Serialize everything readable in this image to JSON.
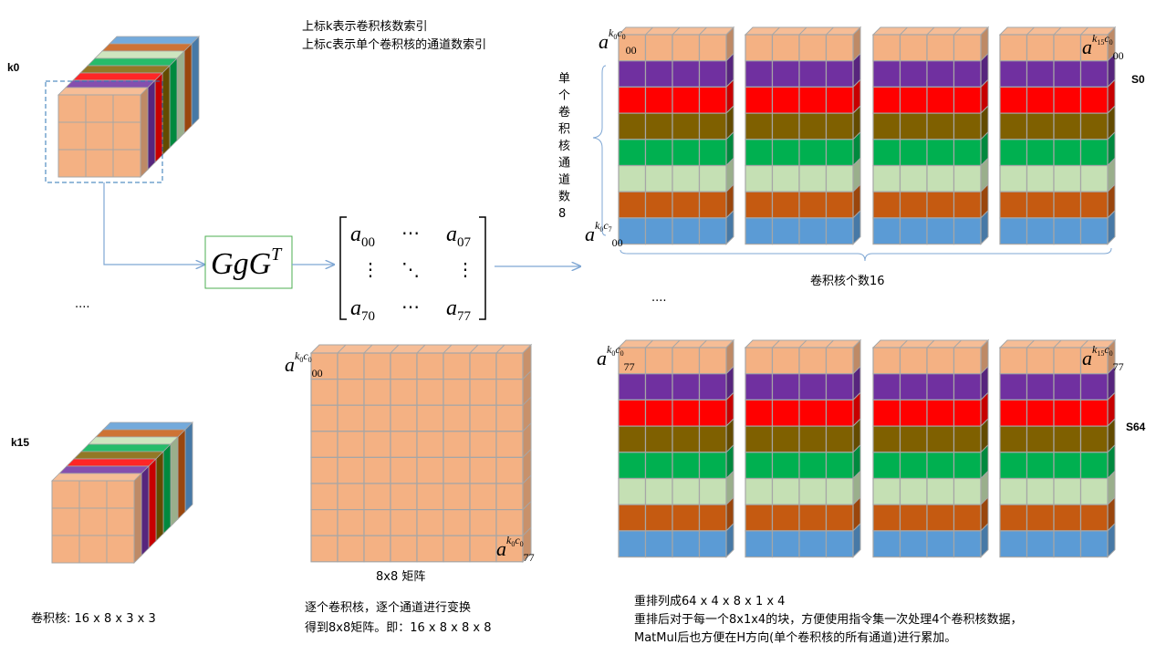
{
  "colors": {
    "peach": "#F4B183",
    "purple": "#7030A0",
    "red": "#FF0000",
    "olive": "#7F6000",
    "green": "#00B050",
    "lightgreen": "#C5E0B4",
    "orange": "#C55A11",
    "blue": "#5B9BD5",
    "grid": "#A6A6A6",
    "arrow": "#7FA7D4",
    "dashed": "#2E75B6",
    "box_border": "#4CAF50"
  },
  "labels": {
    "k0": "k0",
    "k15": "k15",
    "dots_left": "....",
    "dots_mid": "....",
    "s0": "S0",
    "s64": "S64"
  },
  "notes": {
    "line1": "上标k表示卷积核数索引",
    "line2": "上标c表示单个卷积核的通道数索引"
  },
  "transform": {
    "G": "G",
    "g": "g",
    "G2": "G",
    "T": "T"
  },
  "matrix": {
    "a": "a",
    "sub00": "00",
    "sub07": "07",
    "sub70": "70",
    "sub77": "77",
    "hdots": "⋯",
    "vdots": "⋮",
    "ddots": "⋱"
  },
  "annotations": {
    "a": "a",
    "k0": "k",
    "k15": "k",
    "sub0": "0",
    "sub15": "15",
    "c": "c",
    "c0": "0",
    "c7": "7",
    "sub00": "00",
    "sub77": "77"
  },
  "channel_label": [
    "单",
    "个",
    "卷",
    "积",
    "核",
    "通",
    "道",
    "数",
    "8"
  ],
  "kernel_count_label": "卷积核个数16",
  "matrix_label": "8x8 矩阵",
  "bottom": {
    "kernel_size": "卷积核: 16 x 8 x 3  x 3",
    "middle_line1": "逐个卷积核，逐个通道进行变换",
    "middle_line2": "得到8x8矩阵。即：16 x 8 x 8 x 8",
    "right_line1": "重排列成64 x 4 x 8 x 1 x 4",
    "right_line2": "重排后对于每一个8x1x4的块，方便使用指令集一次处理4个卷积核数据，",
    "right_line3": "MatMul后也方便在H方向(单个卷积核的所有通道)进行累加。"
  }
}
